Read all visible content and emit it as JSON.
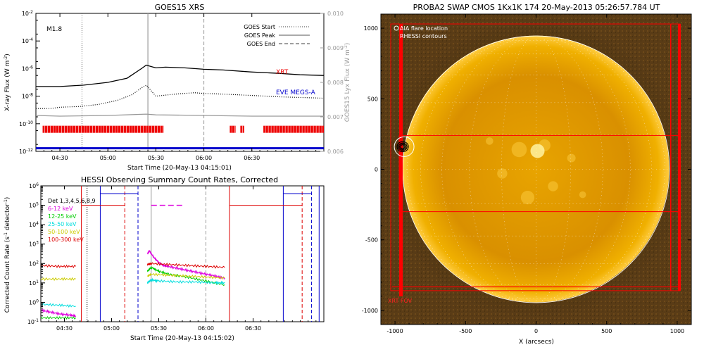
{
  "chart_data": [
    {
      "type": "line",
      "title": "GOES15 XRS",
      "flare_class": "M1.8",
      "xlabel": "Start Time (20-May-13 04:15:01)",
      "ylabel_left": "X-ray Flux (W m",
      "ylabel_left_sup": "-2",
      "ylabel_right": "GOES15 Lyx Flux (W m",
      "ylabel_right_sup": "-2",
      "xlim_hours": [
        4.25,
        7.25
      ],
      "x_ticks": [
        "04:30",
        "05:00",
        "05:30",
        "06:00",
        "06:30"
      ],
      "x_tick_hours": [
        4.5,
        5.0,
        5.5,
        6.0,
        6.5
      ],
      "ylim_log10": [
        -12,
        -2
      ],
      "y_ticks_exp": [
        -2,
        -4,
        -6,
        -8,
        -10,
        -12
      ],
      "y_ticks_base": "10",
      "y_right_ticks": [
        "0.010",
        "0.009",
        "0.008",
        "0.007",
        "0.006"
      ],
      "y_right_range": [
        0.006,
        0.01
      ],
      "legend": [
        {
          "label": "GOES Start",
          "style": "dotted"
        },
        {
          "label": "GOES Peak",
          "style": "solid"
        },
        {
          "label": "GOES End",
          "style": "dashed"
        }
      ],
      "event_lines_hours": {
        "start": 4.73,
        "peak": 5.417,
        "end": 6.0
      },
      "series": [
        {
          "name": "long",
          "color": "#000000",
          "x": [
            4.25,
            4.5,
            4.75,
            5.0,
            5.2,
            5.35,
            5.4,
            5.45,
            5.5,
            5.6,
            5.8,
            6.0,
            6.2,
            6.5,
            6.8,
            7.0,
            7.25
          ],
          "y_log10": [
            -7.3,
            -7.3,
            -7.2,
            -7.0,
            -6.7,
            -6.0,
            -5.75,
            -5.85,
            -5.95,
            -5.9,
            -5.95,
            -6.05,
            -6.1,
            -6.25,
            -6.35,
            -6.45,
            -6.5
          ]
        },
        {
          "name": "short",
          "color": "#000000",
          "style": "dotted",
          "x": [
            4.25,
            4.4,
            4.5,
            4.7,
            4.9,
            5.1,
            5.25,
            5.35,
            5.4,
            5.45,
            5.5,
            5.7,
            5.9,
            6.0,
            6.2,
            6.5,
            6.8,
            7.25
          ],
          "y_log10": [
            -8.9,
            -8.9,
            -8.8,
            -8.75,
            -8.6,
            -8.3,
            -7.9,
            -7.4,
            -7.2,
            -7.6,
            -8.0,
            -7.85,
            -7.75,
            -7.8,
            -7.85,
            -7.95,
            -8.05,
            -8.15
          ]
        },
        {
          "name": "lya",
          "color": "#999999",
          "x": [
            4.25,
            4.5,
            5.0,
            5.4,
            5.5,
            6.0,
            6.5,
            7.0,
            7.25
          ],
          "y_log10": [
            -9.4,
            -9.45,
            -9.4,
            -9.3,
            -9.35,
            -9.4,
            -9.45,
            -9.45,
            -9.45
          ]
        }
      ],
      "annotations": [
        {
          "text": "XRT",
          "color": "#ee0000"
        },
        {
          "text": "EVE MEGS-A",
          "color": "#0000cc"
        }
      ],
      "xrt_coverage_hours": [
        [
          4.32,
          5.58
        ],
        [
          6.27,
          6.33
        ],
        [
          6.38,
          6.42
        ],
        [
          6.62,
          7.25
        ]
      ],
      "eve_coverage_hours": [
        [
          4.25,
          7.25
        ]
      ],
      "eve_level_log10": -11.8,
      "xrt_level_log10": -10.4
    },
    {
      "type": "line",
      "title": "HESSI Observing Summary Count Rates, Corrected",
      "xlabel": "Start Time (20-May-13 04:15:02)",
      "ylabel": "Corrected Count Rate (s",
      "ylabel_sup": "-1",
      "ylabel_tail": " detector",
      "ylabel_tail_sup": "-1",
      "xlim_hours": [
        4.25,
        7.25
      ],
      "x_ticks": [
        "04:30",
        "05:00",
        "05:30",
        "06:00",
        "06:30"
      ],
      "x_tick_hours": [
        4.5,
        5.0,
        5.5,
        6.0,
        6.5
      ],
      "ylim_log10": [
        -1,
        6
      ],
      "y_ticks_exp": [
        6,
        5,
        4,
        3,
        2,
        1,
        0,
        -1
      ],
      "y_ticks_base": "10",
      "legend": [
        {
          "label": "Det 1,3,4,5,6,8,9",
          "color": "#000000"
        },
        {
          "label": "6-12 keV",
          "color": "#dd00dd"
        },
        {
          "label": "12-25 keV",
          "color": "#00cc00"
        },
        {
          "label": "25-50 keV",
          "color": "#00dddd"
        },
        {
          "label": "50-100 keV",
          "color": "#cccc00"
        },
        {
          "label": "100-300 keV",
          "color": "#dd0000"
        }
      ],
      "series": [
        {
          "name": "6-12 keV",
          "color": "#dd00dd",
          "x": [
            4.25,
            4.35,
            4.45,
            4.55,
            4.62,
            5.38,
            5.4,
            5.45,
            5.5,
            5.55,
            5.6,
            5.7,
            5.8,
            5.9,
            6.0,
            6.1,
            6.2
          ],
          "y_log10": [
            -0.4,
            -0.5,
            -0.6,
            -0.65,
            -0.7,
            2.5,
            2.65,
            2.3,
            2.05,
            1.9,
            1.85,
            1.75,
            1.65,
            1.55,
            1.45,
            1.35,
            1.25
          ]
        },
        {
          "name": "12-25 keV",
          "color": "#00cc00",
          "x": [
            4.25,
            4.45,
            4.62,
            5.38,
            5.42,
            5.5,
            5.6,
            5.8,
            6.0,
            6.2
          ],
          "y_log10": [
            -0.8,
            -0.8,
            -0.8,
            1.6,
            1.8,
            1.6,
            1.45,
            1.3,
            1.1,
            0.9
          ]
        },
        {
          "name": "25-50 keV",
          "color": "#00dddd",
          "x": [
            4.25,
            4.45,
            4.62,
            5.38,
            5.42,
            5.5,
            5.7,
            5.9,
            6.1,
            6.2
          ],
          "y_log10": [
            -0.1,
            -0.15,
            -0.2,
            1.0,
            1.15,
            1.1,
            1.05,
            1.05,
            1.0,
            1.0
          ]
        },
        {
          "name": "50-100 keV",
          "color": "#cccc00",
          "x": [
            4.25,
            4.45,
            4.62,
            5.38,
            5.42,
            5.6,
            5.8,
            6.0,
            6.2
          ],
          "y_log10": [
            1.2,
            1.2,
            1.2,
            1.35,
            1.45,
            1.4,
            1.35,
            1.3,
            1.25
          ]
        },
        {
          "name": "100-300 keV",
          "color": "#dd0000",
          "x": [
            4.25,
            4.45,
            4.62,
            5.38,
            5.42,
            5.6,
            5.8,
            6.0,
            6.2
          ],
          "y_log10": [
            1.9,
            1.85,
            1.85,
            1.95,
            2.0,
            1.95,
            1.9,
            1.85,
            1.8
          ]
        }
      ],
      "state_lines": [
        {
          "color": "#dd0000",
          "style": "solid",
          "hours": [
            4.68,
            6.25
          ]
        },
        {
          "color": "#dd0000",
          "style": "dashed",
          "hours": [
            5.14,
            7.02
          ]
        },
        {
          "color": "#0000cc",
          "style": "solid",
          "hours": [
            4.88,
            6.82,
            7.2
          ]
        },
        {
          "color": "#0000cc",
          "style": "dashed",
          "hours": [
            5.28,
            7.12
          ]
        },
        {
          "color": "#999999",
          "style": "solid",
          "hours": [
            5.42
          ]
        },
        {
          "color": "#999999",
          "style": "dashed",
          "hours": [
            6.0
          ]
        },
        {
          "color": "#000000",
          "style": "dotted",
          "hours": [
            4.74
          ]
        }
      ],
      "saa_level_log10": 5.2,
      "night_level_log10": 5.6,
      "flare_level_log10": 5.0
    },
    {
      "type": "image",
      "title": "PROBA2 SWAP CMOS 1Kx1K 174 20-May-2013 05:26:57.784 UT",
      "xlabel": "X (arcsecs)",
      "ylabel": "",
      "xlim": [
        -1100,
        1100
      ],
      "ylim": [
        -1100,
        1100
      ],
      "x_ticks": [
        -1000,
        -500,
        0,
        500,
        1000
      ],
      "y_ticks": [
        1000,
        500,
        0,
        -500,
        -1000
      ],
      "legend": [
        {
          "label": "AIA flare location",
          "color": "#ffffff",
          "marker": "circle"
        },
        {
          "label": "RHESSI contours",
          "color": "#ffffff",
          "marker": "line"
        }
      ],
      "solar_radius_arcsec": 945,
      "flare_location_arcsec": [
        -945,
        160
      ],
      "xrt_fov_label": "XRT FOV",
      "xrt_fov_color": "#ff0000",
      "xrt_fov_arcsec": {
        "x": [
          -1030,
          1020
        ],
        "y": [
          -860,
          1030
        ]
      },
      "xrt_strip_arcsec": {
        "y": [
          -300,
          240
        ]
      }
    }
  ]
}
